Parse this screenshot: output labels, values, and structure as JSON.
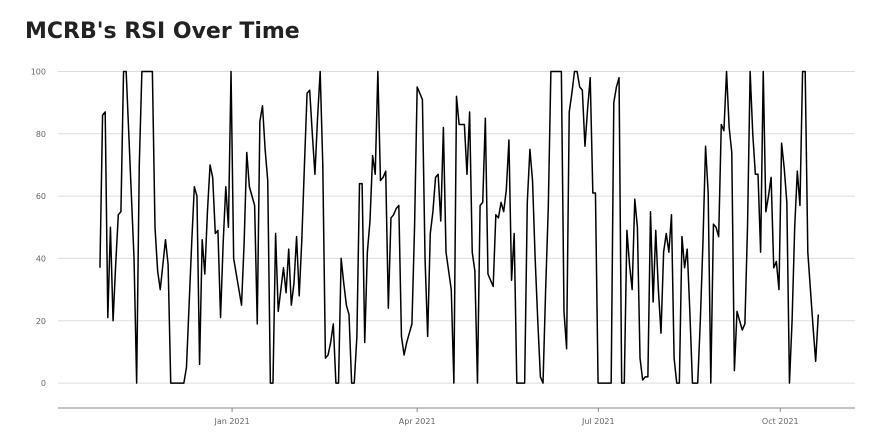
{
  "chart_data": {
    "type": "line",
    "title": "MCRB's RSI Over Time",
    "series": [
      {
        "name": "RSI",
        "color": "#000000",
        "values": [
          37,
          86,
          87,
          21,
          50,
          20,
          38,
          54,
          55,
          100,
          100,
          80,
          60,
          40,
          0,
          70,
          100,
          100,
          100,
          100,
          100,
          50,
          36,
          30,
          38,
          46,
          38,
          0,
          0,
          0,
          0,
          0,
          0,
          5,
          25,
          45,
          63,
          60,
          6,
          46,
          35,
          55,
          70,
          66,
          48,
          49,
          21,
          45,
          63,
          50,
          100,
          40,
          35,
          30,
          25,
          45,
          74,
          63,
          60,
          57,
          19,
          84,
          89,
          75,
          65,
          0,
          0,
          48,
          23,
          30,
          37,
          29,
          43,
          25,
          32,
          47,
          28,
          46,
          70,
          93,
          94,
          80,
          67,
          85,
          100,
          70,
          8,
          9,
          13,
          19,
          0,
          0,
          40,
          32,
          25,
          22,
          0,
          0,
          15,
          64,
          64,
          13,
          42,
          52,
          73,
          67,
          100,
          65,
          66,
          68,
          24,
          53,
          54,
          56,
          57,
          15,
          9,
          13,
          16,
          19,
          50,
          95,
          93,
          91,
          40,
          15,
          48,
          55,
          66,
          67,
          52,
          82,
          42,
          36,
          30,
          0,
          92,
          83,
          83,
          83,
          67,
          87,
          42,
          36,
          0,
          57,
          58,
          85,
          35,
          33,
          31,
          54,
          53,
          58,
          55,
          62,
          78,
          33,
          48,
          0,
          0,
          0,
          0,
          58,
          75,
          65,
          40,
          20,
          2,
          0,
          30,
          56,
          100,
          100,
          100,
          100,
          100,
          23,
          11,
          87,
          93,
          100,
          100,
          95,
          94,
          76,
          88,
          98,
          61,
          61,
          0,
          0,
          0,
          0,
          0,
          0,
          90,
          95,
          98,
          0,
          0,
          49,
          38,
          30,
          59,
          50,
          8,
          1,
          2,
          2,
          55,
          26,
          49,
          30,
          16,
          42,
          48,
          42,
          54,
          8,
          0,
          0,
          47,
          37,
          43,
          23,
          0,
          0,
          0,
          20,
          45,
          76,
          61,
          0,
          51,
          50,
          47,
          83,
          81,
          100,
          82,
          74,
          4,
          23,
          20,
          17,
          19,
          50,
          100,
          80,
          67,
          67,
          42,
          100,
          55,
          60,
          66,
          37,
          39,
          30,
          77,
          69,
          58,
          0,
          20,
          50,
          68,
          57,
          100,
          100,
          42,
          30,
          18,
          7,
          22
        ]
      }
    ],
    "xlim": [
      -16,
      288
    ],
    "xticks": [
      {
        "value": 50.4,
        "label": "Jan 2021"
      },
      {
        "value": 121,
        "label": "Apr 2021"
      },
      {
        "value": 190.1,
        "label": "Jul 2021"
      },
      {
        "value": 259.5,
        "label": "Oct 2021"
      }
    ],
    "ylim": [
      -8,
      104
    ],
    "yticks": [
      0,
      20,
      40,
      60,
      80,
      100
    ],
    "grid": true
  }
}
